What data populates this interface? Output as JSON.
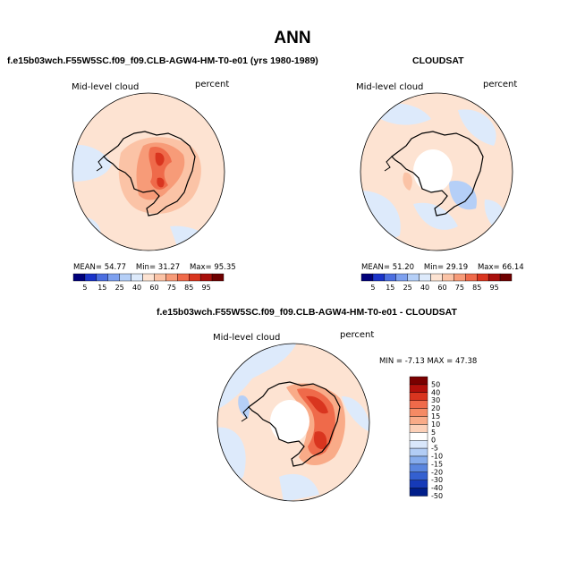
{
  "figure": {
    "title": "ANN"
  },
  "chart_data": [
    {
      "type": "heatmap",
      "projection": "south-polar-stereographic",
      "title": "f.e15b03wch.F55W5SC.f09_f09.CLB-AGW4-HM-T0-e01 (yrs 1980-1989)",
      "field": "Mid-level cloud",
      "units": "percent",
      "stats": {
        "mean_label": "MEAN=",
        "mean": "54.77",
        "min_label": "Min=",
        "min": "31.27",
        "max_label": "Max=",
        "max": "95.35"
      },
      "colorbar": {
        "orientation": "horizontal",
        "levels": [
          "5",
          "15",
          "25",
          "40",
          "60",
          "75",
          "85",
          "95"
        ]
      }
    },
    {
      "type": "heatmap",
      "projection": "south-polar-stereographic",
      "title": "CLOUDSAT",
      "field": "Mid-level cloud",
      "units": "percent",
      "stats": {
        "mean_label": "MEAN=",
        "mean": "51.20",
        "min_label": "Min=",
        "min": "29.19",
        "max_label": "Max=",
        "max": "66.14"
      },
      "colorbar": {
        "orientation": "horizontal",
        "levels": [
          "5",
          "15",
          "25",
          "40",
          "60",
          "75",
          "85",
          "95"
        ]
      }
    },
    {
      "type": "heatmap",
      "projection": "south-polar-stereographic",
      "title": "f.e15b03wch.F55W5SC.f09_f09.CLB-AGW4-HM-T0-e01 - CLOUDSAT",
      "field": "Mid-level cloud",
      "units": "percent",
      "stats": {
        "min_label": "MIN =",
        "min": "-7.13",
        "max_label": "MAX =",
        "max": "47.38"
      },
      "colorbar": {
        "orientation": "vertical",
        "levels": [
          "50",
          "40",
          "30",
          "20",
          "15",
          "10",
          "5",
          "0",
          "-5",
          "-10",
          "-15",
          "-20",
          "-30",
          "-40",
          "-50"
        ]
      }
    }
  ],
  "colors": {
    "abs_scale": [
      "#00007a",
      "#1a33c9",
      "#4b6ee0",
      "#7da0ef",
      "#b5cff7",
      "#ddeafb",
      "#fde3d2",
      "#fbc3a6",
      "#f79b78",
      "#ef6a4a",
      "#d9351f",
      "#a80f0b",
      "#6e0000"
    ],
    "diff_scale": [
      "#7a0000",
      "#b2100b",
      "#d9351f",
      "#ef6a4a",
      "#f58a64",
      "#f9ab88",
      "#fcd0b8",
      "#ffffff",
      "#d9e7fb",
      "#b2cdf5",
      "#86acec",
      "#5a86df",
      "#3460d0",
      "#163ab8",
      "#001e8a"
    ],
    "ocean_base": "#fde3d2",
    "land_line": "#000000"
  }
}
